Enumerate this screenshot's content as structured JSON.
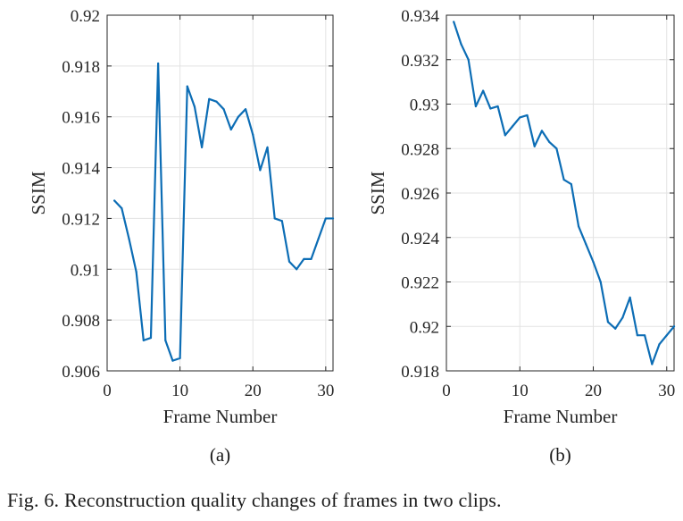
{
  "caption": "Fig. 6.  Reconstruction quality changes of frames in two clips.",
  "colors": {
    "series": "#0c6db5",
    "axis": "#262626",
    "grid": "#e3e3e3"
  },
  "chart_data": [
    {
      "type": "line",
      "panel_label": "(a)",
      "title": "",
      "xlabel": "Frame Number",
      "ylabel": "SSIM",
      "xlim": [
        0,
        31
      ],
      "ylim": [
        0.906,
        0.92
      ],
      "xticks": [
        0,
        10,
        20,
        30
      ],
      "yticks": [
        0.906,
        0.908,
        0.91,
        0.912,
        0.914,
        0.916,
        0.918,
        0.92
      ],
      "xtick_labels": [
        "0",
        "10",
        "20",
        "30"
      ],
      "ytick_labels": [
        "0.906",
        "0.908",
        "0.91",
        "0.912",
        "0.914",
        "0.916",
        "0.918",
        "0.92"
      ],
      "grid": true,
      "legend": "none",
      "series": [
        {
          "x": [
            1,
            2,
            3,
            4,
            5,
            6,
            7,
            8,
            9,
            10,
            11,
            12,
            13,
            14,
            15,
            16,
            17,
            18,
            19,
            20,
            21,
            22,
            23,
            24,
            25,
            26,
            27,
            28,
            29,
            30,
            31
          ],
          "values": [
            0.9127,
            0.9124,
            0.9112,
            0.9099,
            0.9072,
            0.9073,
            0.9181,
            0.9072,
            0.9064,
            0.9065,
            0.9172,
            0.9164,
            0.9148,
            0.9167,
            0.9166,
            0.9163,
            0.9155,
            0.916,
            0.9163,
            0.9153,
            0.9139,
            0.9148,
            0.912,
            0.9119,
            0.9103,
            0.91,
            0.9104,
            0.9104,
            0.9112,
            0.912,
            0.912
          ]
        }
      ]
    },
    {
      "type": "line",
      "panel_label": "(b)",
      "title": "",
      "xlabel": "Frame Number",
      "ylabel": "SSIM",
      "xlim": [
        0,
        31
      ],
      "ylim": [
        0.918,
        0.934
      ],
      "xticks": [
        0,
        10,
        20,
        30
      ],
      "yticks": [
        0.918,
        0.92,
        0.922,
        0.924,
        0.926,
        0.928,
        0.93,
        0.932,
        0.934
      ],
      "xtick_labels": [
        "0",
        "10",
        "20",
        "30"
      ],
      "ytick_labels": [
        "0.918",
        "0.92",
        "0.922",
        "0.924",
        "0.926",
        "0.928",
        "0.93",
        "0.932",
        "0.934"
      ],
      "grid": true,
      "legend": "none",
      "series": [
        {
          "x": [
            1,
            2,
            3,
            4,
            5,
            6,
            7,
            8,
            9,
            10,
            11,
            12,
            13,
            14,
            15,
            16,
            17,
            18,
            19,
            20,
            21,
            22,
            23,
            24,
            25,
            26,
            27,
            28,
            29,
            30,
            31
          ],
          "values": [
            0.9337,
            0.9327,
            0.932,
            0.9299,
            0.9306,
            0.9298,
            0.9299,
            0.9286,
            0.929,
            0.9294,
            0.9295,
            0.9281,
            0.9288,
            0.9283,
            0.928,
            0.9266,
            0.9264,
            0.9245,
            0.9237,
            0.9229,
            0.922,
            0.9202,
            0.9199,
            0.9204,
            0.9213,
            0.9196,
            0.9196,
            0.9183,
            0.9192,
            0.9196,
            0.92
          ]
        }
      ]
    }
  ]
}
